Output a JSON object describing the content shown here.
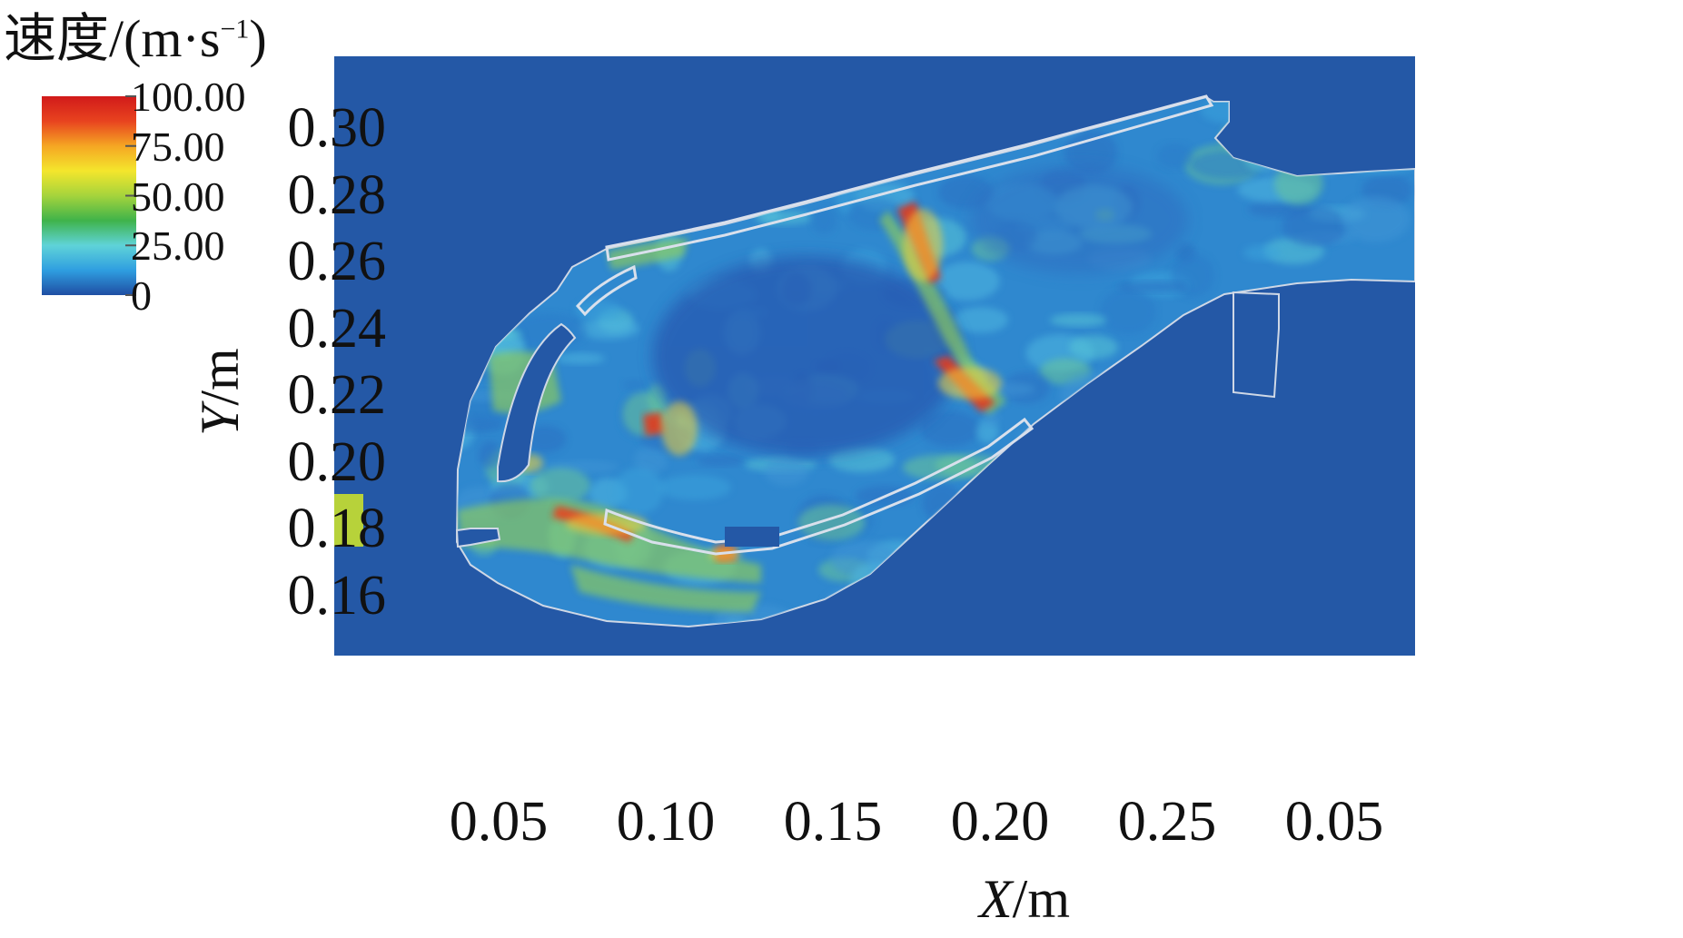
{
  "chart_data": {
    "type": "heatmap",
    "title": "速度/(m·s",
    "title_sup": "−1",
    "title_close": ")",
    "xlabel_var": "X",
    "xlabel_unit": "/m",
    "ylabel_var": "Y",
    "ylabel_unit": "/m",
    "x_ticks": [
      "0.05",
      "0.10",
      "0.15",
      "0.20",
      "0.25",
      "0.05"
    ],
    "y_ticks": [
      "0.30",
      "0.28",
      "0.26",
      "0.24",
      "0.22",
      "0.20",
      "0.18",
      "0.16"
    ],
    "colorbar": {
      "labels": [
        "100.00",
        "75.00",
        "50.00",
        "25.00",
        "0"
      ],
      "values": [
        100,
        75,
        50,
        25,
        0
      ],
      "range": [
        0,
        100
      ],
      "colors": [
        "#1f4ea3",
        "#2f9ee0",
        "#5fd3d8",
        "#3fb34a",
        "#a5d43c",
        "#f4e62c",
        "#f5a623",
        "#e8431f",
        "#d11a1a"
      ]
    },
    "background_color": "#2458a6",
    "grid": false,
    "legend_position": "top-left"
  }
}
